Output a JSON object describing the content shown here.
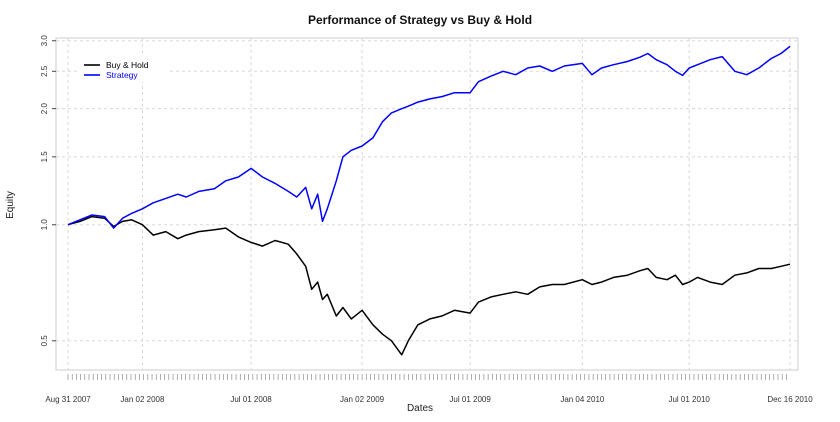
{
  "chart_data": {
    "type": "line",
    "title": "Performance of Strategy vs Buy & Hold",
    "xlabel": "Dates",
    "ylabel": "Equity",
    "yscale": "log",
    "ylim": [
      0.42,
      3.05
    ],
    "xlim": [
      "2007-08-31",
      "2010-12-16"
    ],
    "yticks": [
      0.5,
      1.0,
      1.5,
      2.0,
      2.5,
      3.0
    ],
    "ytick_labels": [
      "0.5",
      "1.0",
      "1.5",
      "2.0",
      "2.5",
      "3.0"
    ],
    "xticks": [
      "2007-08-31",
      "2008-01-02",
      "2008-07-01",
      "2009-01-02",
      "2009-07-01",
      "2010-01-04",
      "2010-07-01",
      "2010-12-16"
    ],
    "xtick_labels": [
      "Aug 31 2007",
      "Jan 02 2008",
      "Jul 01 2008",
      "Jan 02 2009",
      "Jul 01 2009",
      "Jan 04 2010",
      "Jul 01 2010",
      "Dec 16 2010"
    ],
    "grid": true,
    "legend": "top-left",
    "series": [
      {
        "name": "Buy & Hold",
        "color": "#000000",
        "x": [
          "2007-08-31",
          "2007-09-20",
          "2007-10-10",
          "2007-10-31",
          "2007-11-15",
          "2007-11-30",
          "2007-12-15",
          "2008-01-02",
          "2008-01-20",
          "2008-02-10",
          "2008-03-01",
          "2008-03-15",
          "2008-04-05",
          "2008-05-01",
          "2008-05-20",
          "2008-06-10",
          "2008-07-01",
          "2008-07-20",
          "2008-08-10",
          "2008-09-01",
          "2008-09-15",
          "2008-09-30",
          "2008-10-10",
          "2008-10-20",
          "2008-10-28",
          "2008-11-05",
          "2008-11-20",
          "2008-12-01",
          "2008-12-15",
          "2009-01-02",
          "2009-01-20",
          "2009-02-05",
          "2009-02-20",
          "2009-03-09",
          "2009-03-20",
          "2009-04-05",
          "2009-04-25",
          "2009-05-15",
          "2009-06-05",
          "2009-07-01",
          "2009-07-15",
          "2009-08-05",
          "2009-08-25",
          "2009-09-15",
          "2009-10-05",
          "2009-10-25",
          "2009-11-15",
          "2009-12-05",
          "2010-01-04",
          "2010-01-20",
          "2010-02-05",
          "2010-02-25",
          "2010-03-20",
          "2010-04-10",
          "2010-04-23",
          "2010-05-07",
          "2010-05-25",
          "2010-06-08",
          "2010-06-20",
          "2010-07-01",
          "2010-07-15",
          "2010-08-05",
          "2010-08-25",
          "2010-09-15",
          "2010-10-05",
          "2010-10-25",
          "2010-11-15",
          "2010-12-01",
          "2010-12-16"
        ],
        "y": [
          1.0,
          1.02,
          1.05,
          1.04,
          0.99,
          1.02,
          1.03,
          1.0,
          0.94,
          0.96,
          0.92,
          0.94,
          0.96,
          0.97,
          0.98,
          0.93,
          0.9,
          0.88,
          0.91,
          0.89,
          0.84,
          0.78,
          0.68,
          0.71,
          0.64,
          0.66,
          0.58,
          0.61,
          0.57,
          0.6,
          0.55,
          0.52,
          0.5,
          0.46,
          0.5,
          0.55,
          0.57,
          0.58,
          0.6,
          0.59,
          0.63,
          0.65,
          0.66,
          0.67,
          0.66,
          0.69,
          0.7,
          0.7,
          0.72,
          0.7,
          0.71,
          0.73,
          0.74,
          0.76,
          0.77,
          0.73,
          0.72,
          0.74,
          0.7,
          0.71,
          0.73,
          0.71,
          0.7,
          0.74,
          0.75,
          0.77,
          0.77,
          0.78,
          0.79
        ]
      },
      {
        "name": "Strategy",
        "color": "#0000ff",
        "x": [
          "2007-08-31",
          "2007-09-20",
          "2007-10-10",
          "2007-10-31",
          "2007-11-15",
          "2007-11-30",
          "2007-12-15",
          "2008-01-02",
          "2008-01-20",
          "2008-02-10",
          "2008-03-01",
          "2008-03-15",
          "2008-04-05",
          "2008-05-01",
          "2008-05-20",
          "2008-06-10",
          "2008-07-01",
          "2008-07-20",
          "2008-08-10",
          "2008-09-01",
          "2008-09-15",
          "2008-09-30",
          "2008-10-10",
          "2008-10-20",
          "2008-10-28",
          "2008-11-05",
          "2008-11-20",
          "2008-12-01",
          "2008-12-15",
          "2009-01-02",
          "2009-01-20",
          "2009-02-05",
          "2009-02-20",
          "2009-03-09",
          "2009-03-20",
          "2009-04-05",
          "2009-04-25",
          "2009-05-15",
          "2009-06-05",
          "2009-07-01",
          "2009-07-15",
          "2009-08-05",
          "2009-08-25",
          "2009-09-15",
          "2009-10-05",
          "2009-10-25",
          "2009-11-15",
          "2009-12-05",
          "2010-01-04",
          "2010-01-20",
          "2010-02-05",
          "2010-02-25",
          "2010-03-20",
          "2010-04-10",
          "2010-04-23",
          "2010-05-07",
          "2010-05-25",
          "2010-06-08",
          "2010-06-20",
          "2010-07-01",
          "2010-07-15",
          "2010-08-05",
          "2010-08-25",
          "2010-09-15",
          "2010-10-05",
          "2010-10-25",
          "2010-11-15",
          "2010-12-01",
          "2010-12-16"
        ],
        "y": [
          1.0,
          1.03,
          1.06,
          1.05,
          0.98,
          1.04,
          1.07,
          1.1,
          1.14,
          1.17,
          1.2,
          1.18,
          1.22,
          1.24,
          1.3,
          1.33,
          1.4,
          1.33,
          1.28,
          1.22,
          1.18,
          1.25,
          1.1,
          1.2,
          1.02,
          1.1,
          1.3,
          1.5,
          1.56,
          1.6,
          1.68,
          1.85,
          1.95,
          2.0,
          2.03,
          2.08,
          2.12,
          2.15,
          2.2,
          2.2,
          2.35,
          2.43,
          2.5,
          2.45,
          2.55,
          2.58,
          2.5,
          2.58,
          2.62,
          2.45,
          2.55,
          2.6,
          2.65,
          2.72,
          2.78,
          2.68,
          2.6,
          2.5,
          2.44,
          2.55,
          2.6,
          2.68,
          2.73,
          2.5,
          2.45,
          2.55,
          2.7,
          2.78,
          2.9
        ]
      }
    ]
  }
}
